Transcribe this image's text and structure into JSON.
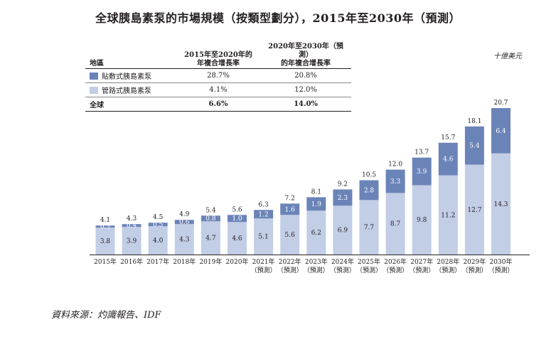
{
  "title": "全球胰島素泵的市場規模（按類型劃分），2015年至2030年（預測）",
  "unit": "十億美元",
  "source": "資料來源：灼識報告、IDF",
  "colors": {
    "patch": "#6b84b8",
    "tube": "#c2cde6",
    "axis": "#231f20",
    "text": "#231f20"
  },
  "table": {
    "headers": {
      "region": "地區",
      "cagr_2015_2020": "2015年至2020年的年複合增長率",
      "cagr_2020_2030": "2020年至2030年（預測）的年複合增長率"
    },
    "header_lines": {
      "cagr_2015_2020": [
        "2015年至2020年的",
        "年複合增長率"
      ],
      "cagr_2020_2030": [
        "2020年至2030年（預測）",
        "的年複合增長率"
      ]
    },
    "rows": [
      {
        "region": "貼敷式胰島素泵",
        "cagr_2015_2020": "28.7%",
        "cagr_2020_2030": "20.8%",
        "swatch": "patch"
      },
      {
        "region": "管路式胰島素泵",
        "cagr_2015_2020": "4.1%",
        "cagr_2020_2030": "12.0%",
        "swatch": "tube"
      },
      {
        "region": "全球",
        "cagr_2015_2020": "6.6%",
        "cagr_2020_2030": "14.0%",
        "swatch": null
      }
    ]
  },
  "chart_data": {
    "type": "bar",
    "stacked": true,
    "categories": [
      "2015年",
      "2016年",
      "2017年",
      "2018年",
      "2019年",
      "2020年",
      "2021年",
      "2022年",
      "2023年",
      "2024年",
      "2025年",
      "2026年",
      "2027年",
      "2028年",
      "2029年",
      "2030年"
    ],
    "category_sublabels": [
      "",
      "",
      "",
      "",
      "",
      "",
      "（預測）",
      "（預測）",
      "（預測）",
      "（預測）",
      "（預測）",
      "（預測）",
      "（預測）",
      "（預測）",
      "（預測）",
      "（預測）"
    ],
    "series": [
      {
        "name": "管路式胰島素泵",
        "color_key": "tube",
        "values": [
          3.8,
          3.9,
          4.0,
          4.3,
          4.7,
          4.6,
          5.1,
          5.6,
          6.2,
          6.9,
          7.7,
          8.7,
          9.8,
          11.2,
          12.7,
          14.3
        ]
      },
      {
        "name": "貼敷式胰島素泵",
        "color_key": "patch",
        "values": [
          0.3,
          0.4,
          0.5,
          0.6,
          0.8,
          1.0,
          1.2,
          1.6,
          1.9,
          2.3,
          2.8,
          3.3,
          3.9,
          4.6,
          5.4,
          6.4
        ]
      }
    ],
    "totals": [
      4.1,
      4.3,
      4.5,
      4.9,
      5.4,
      5.6,
      6.3,
      7.2,
      8.1,
      9.2,
      10.5,
      12.0,
      13.7,
      15.7,
      18.1,
      20.7
    ],
    "ylim": [
      0,
      20.7
    ],
    "grid": false
  }
}
